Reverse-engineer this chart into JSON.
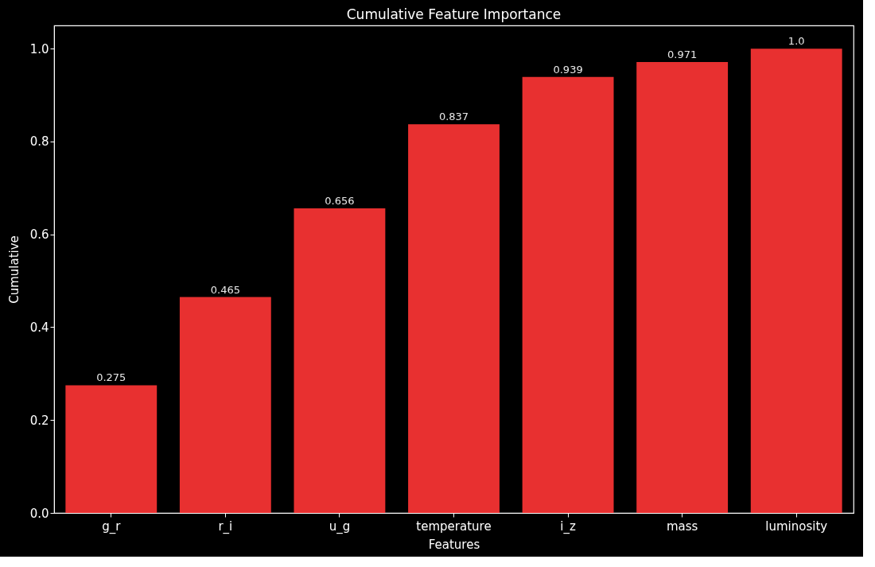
{
  "chart_data": {
    "type": "bar",
    "title": "Cumulative Feature Importance",
    "xlabel": "Features",
    "ylabel": "Cumulative",
    "categories": [
      "g_r",
      "r_i",
      "u_g",
      "temperature",
      "i_z",
      "mass",
      "luminosity"
    ],
    "values": [
      0.275,
      0.465,
      0.656,
      0.837,
      0.939,
      0.971,
      1.0
    ],
    "value_labels": [
      "0.275",
      "0.465",
      "0.656",
      "0.837",
      "0.939",
      "0.971",
      "1.0"
    ],
    "color": "#e83030",
    "ylim": [
      0,
      1.05
    ],
    "yticks": [
      {
        "value": 0,
        "label": "0.0"
      },
      0.2,
      0.4,
      0.6,
      0.8,
      {
        "value": 1,
        "label": "1.0"
      }
    ],
    "grid": false
  }
}
